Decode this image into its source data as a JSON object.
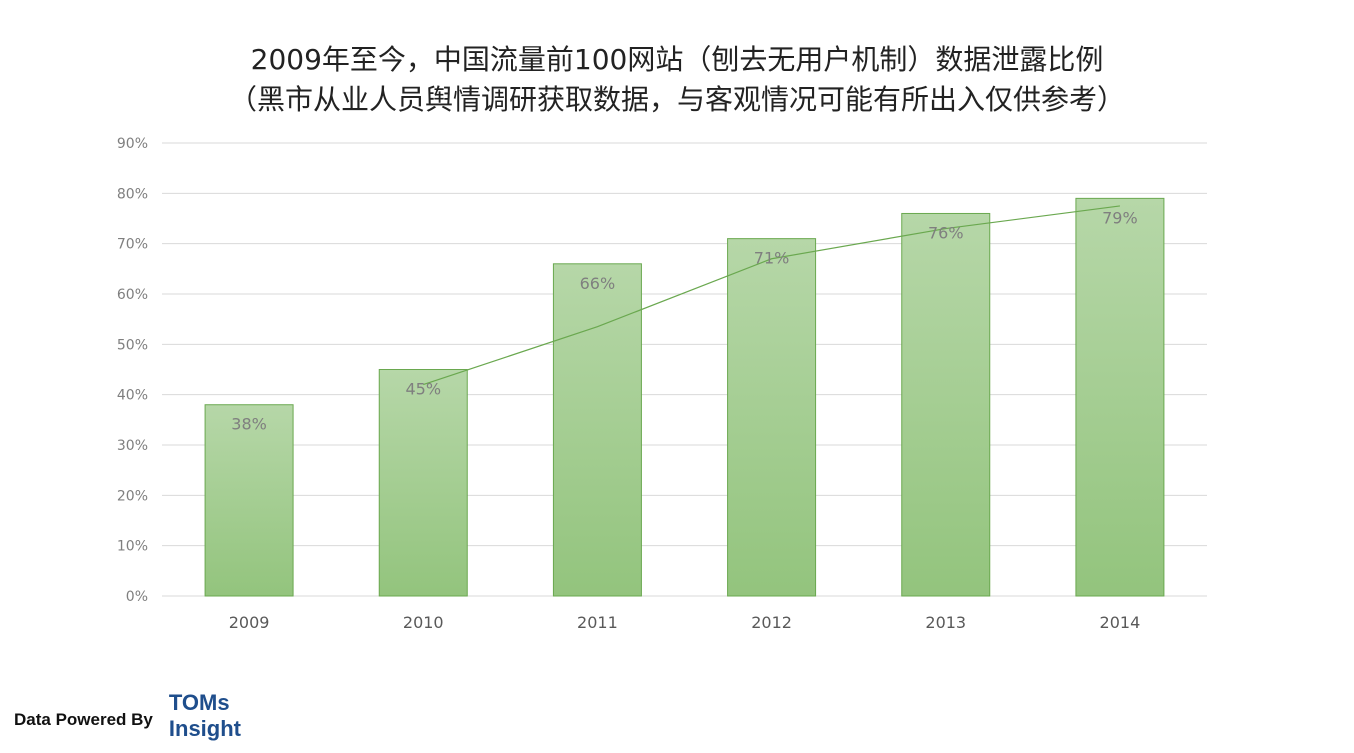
{
  "header": {
    "title_line1": "2009年至今，中国流量前100网站（刨去无用户机制）数据泄露比例",
    "title_line2": "（黑市从业人员舆情调研获取数据，与客观情况可能有所出入仅供参考）"
  },
  "chart_data": {
    "type": "bar",
    "categories": [
      "2009",
      "2010",
      "2011",
      "2012",
      "2013",
      "2014"
    ],
    "values": [
      38,
      45,
      66,
      71,
      76,
      79
    ],
    "data_labels": [
      "38%",
      "45%",
      "66%",
      "71%",
      "76%",
      "79%"
    ],
    "ylim": [
      0,
      90
    ],
    "y_ticks": [
      "0%",
      "10%",
      "20%",
      "30%",
      "40%",
      "50%",
      "60%",
      "70%",
      "80%",
      "90%"
    ],
    "y_tick_values": [
      0,
      10,
      20,
      30,
      40,
      50,
      60,
      70,
      80,
      90
    ],
    "grid": true,
    "legend": "none",
    "trendline": {
      "from_category": "2010",
      "to_category": "2014",
      "values": [
        42,
        53.5,
        67,
        73,
        77.5
      ]
    },
    "colors": {
      "bar_top": "#b6d7a8",
      "bar_bottom": "#93c47d",
      "bar_border": "#6aa84f",
      "trend": "#6aa84f",
      "label": "#7f7f7f",
      "grid": "#d9d9d9"
    }
  },
  "footer": {
    "powered_by": "Data Powered By",
    "brand_line1": "TOMs",
    "brand_line2": "Insight",
    "brand_color": "#1f4e8c"
  }
}
